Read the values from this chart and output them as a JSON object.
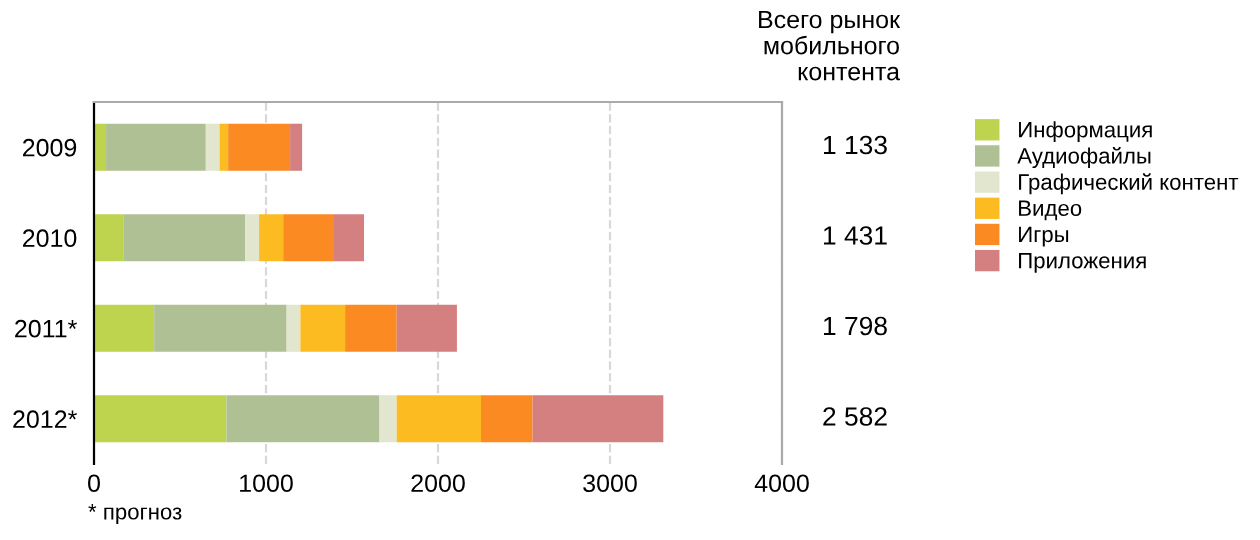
{
  "chart_data": {
    "type": "bar",
    "orientation": "horizontal",
    "stacked": true,
    "categories": [
      "2009",
      "2010",
      "2011*",
      "2012*"
    ],
    "series": [
      {
        "name": "Информация",
        "color": "#bed44e",
        "values": [
          70,
          170,
          350,
          770
        ]
      },
      {
        "name": "Аудиофайлы",
        "color": "#b0c095",
        "values": [
          580,
          710,
          770,
          890
        ]
      },
      {
        "name": "Графический контент",
        "color": "#e2e6cf",
        "values": [
          80,
          80,
          80,
          100
        ]
      },
      {
        "name": "Видео",
        "color": "#fdbb22",
        "values": [
          50,
          140,
          260,
          490
        ]
      },
      {
        "name": "Игры",
        "color": "#fb8a22",
        "values": [
          360,
          290,
          300,
          300
        ]
      },
      {
        "name": "Приложения",
        "color": "#d47f80",
        "values": [
          70,
          180,
          350,
          760
        ]
      }
    ],
    "xlim": [
      0,
      4000
    ],
    "xticks": [
      0,
      1000,
      2000,
      3000,
      4000
    ],
    "grid": "x",
    "legend": "right",
    "annotations": [
      "Всего рынок\nмобильного\nконтента",
      "1 133",
      "1 431",
      "1 798",
      "2 582",
      "* прогноз"
    ]
  }
}
